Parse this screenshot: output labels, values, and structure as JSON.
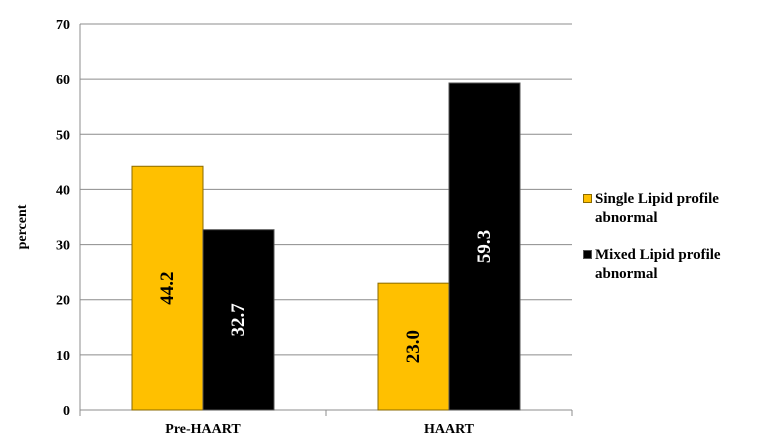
{
  "chart_data": {
    "type": "bar",
    "categories": [
      "Pre-HAART",
      "HAART"
    ],
    "series": [
      {
        "name": "Single Lipid profile abnormal",
        "values": [
          44.2,
          23.0
        ],
        "labels": [
          "44.2",
          "23.0"
        ],
        "color": "#ffc000",
        "stroke": "#8a6a00",
        "label_color": "#000000"
      },
      {
        "name": "Mixed Lipid profile abnormal",
        "values": [
          32.7,
          59.3
        ],
        "labels": [
          "32.7",
          "59.3"
        ],
        "color": "#000000",
        "stroke": "#555555",
        "label_color": "#ffffff"
      }
    ],
    "yticks": [
      "0",
      "10",
      "20",
      "30",
      "40",
      "50",
      "60",
      "70"
    ],
    "ylabel": "percent",
    "ylim": [
      0,
      70
    ],
    "grid": true,
    "legend_position": "right"
  }
}
